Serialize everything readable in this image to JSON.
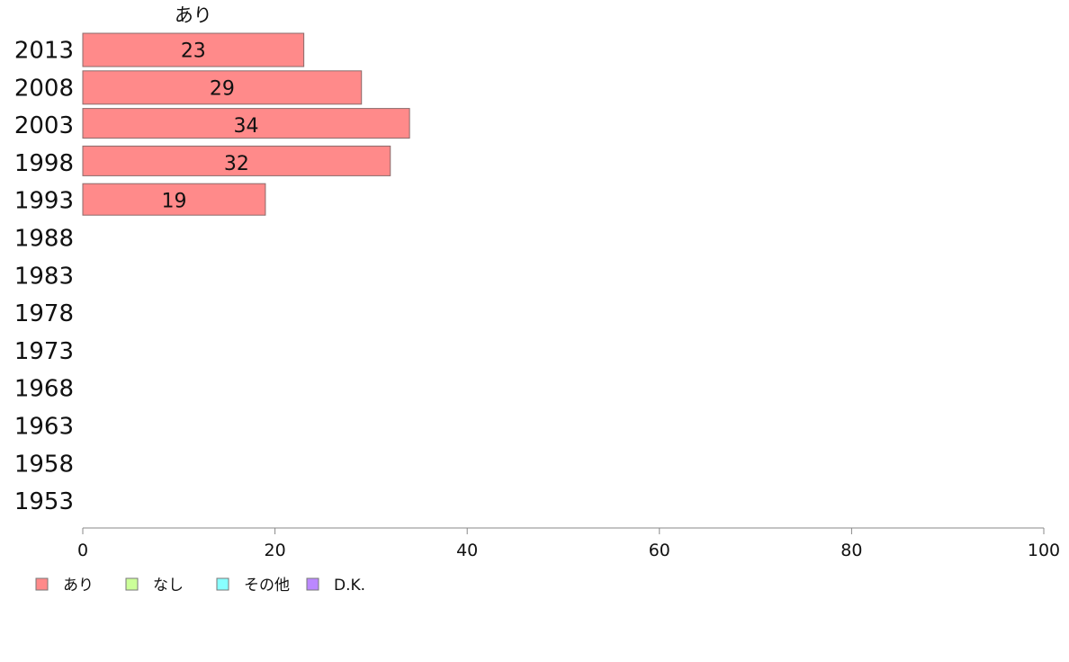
{
  "chart_data": {
    "type": "bar",
    "orientation": "horizontal",
    "stacked": true,
    "categories": [
      "2013",
      "2008",
      "2003",
      "1998",
      "1993",
      "1988",
      "1983",
      "1978",
      "1973",
      "1968",
      "1963",
      "1958",
      "1953"
    ],
    "series": [
      {
        "name": "あり",
        "color": "#ff8a8a",
        "values": [
          23,
          29,
          34,
          32,
          19,
          null,
          null,
          null,
          null,
          null,
          null,
          null,
          null
        ]
      },
      {
        "name": "なし",
        "color": "#ccff99",
        "values": [
          null,
          null,
          null,
          null,
          null,
          null,
          null,
          null,
          null,
          null,
          null,
          null,
          null
        ]
      },
      {
        "name": "その他",
        "color": "#88ffff",
        "values": [
          null,
          null,
          null,
          null,
          null,
          null,
          null,
          null,
          null,
          null,
          null,
          null,
          null
        ]
      },
      {
        "name": "D.K.",
        "color": "#bb88ff",
        "values": [
          null,
          null,
          null,
          null,
          null,
          null,
          null,
          null,
          null,
          null,
          null,
          null,
          null
        ]
      }
    ],
    "series_header": "あり",
    "xlim": [
      0,
      100
    ],
    "xticks": [
      0,
      20,
      40,
      60,
      80,
      100
    ],
    "grid": false,
    "legend_position": "bottom-left"
  }
}
